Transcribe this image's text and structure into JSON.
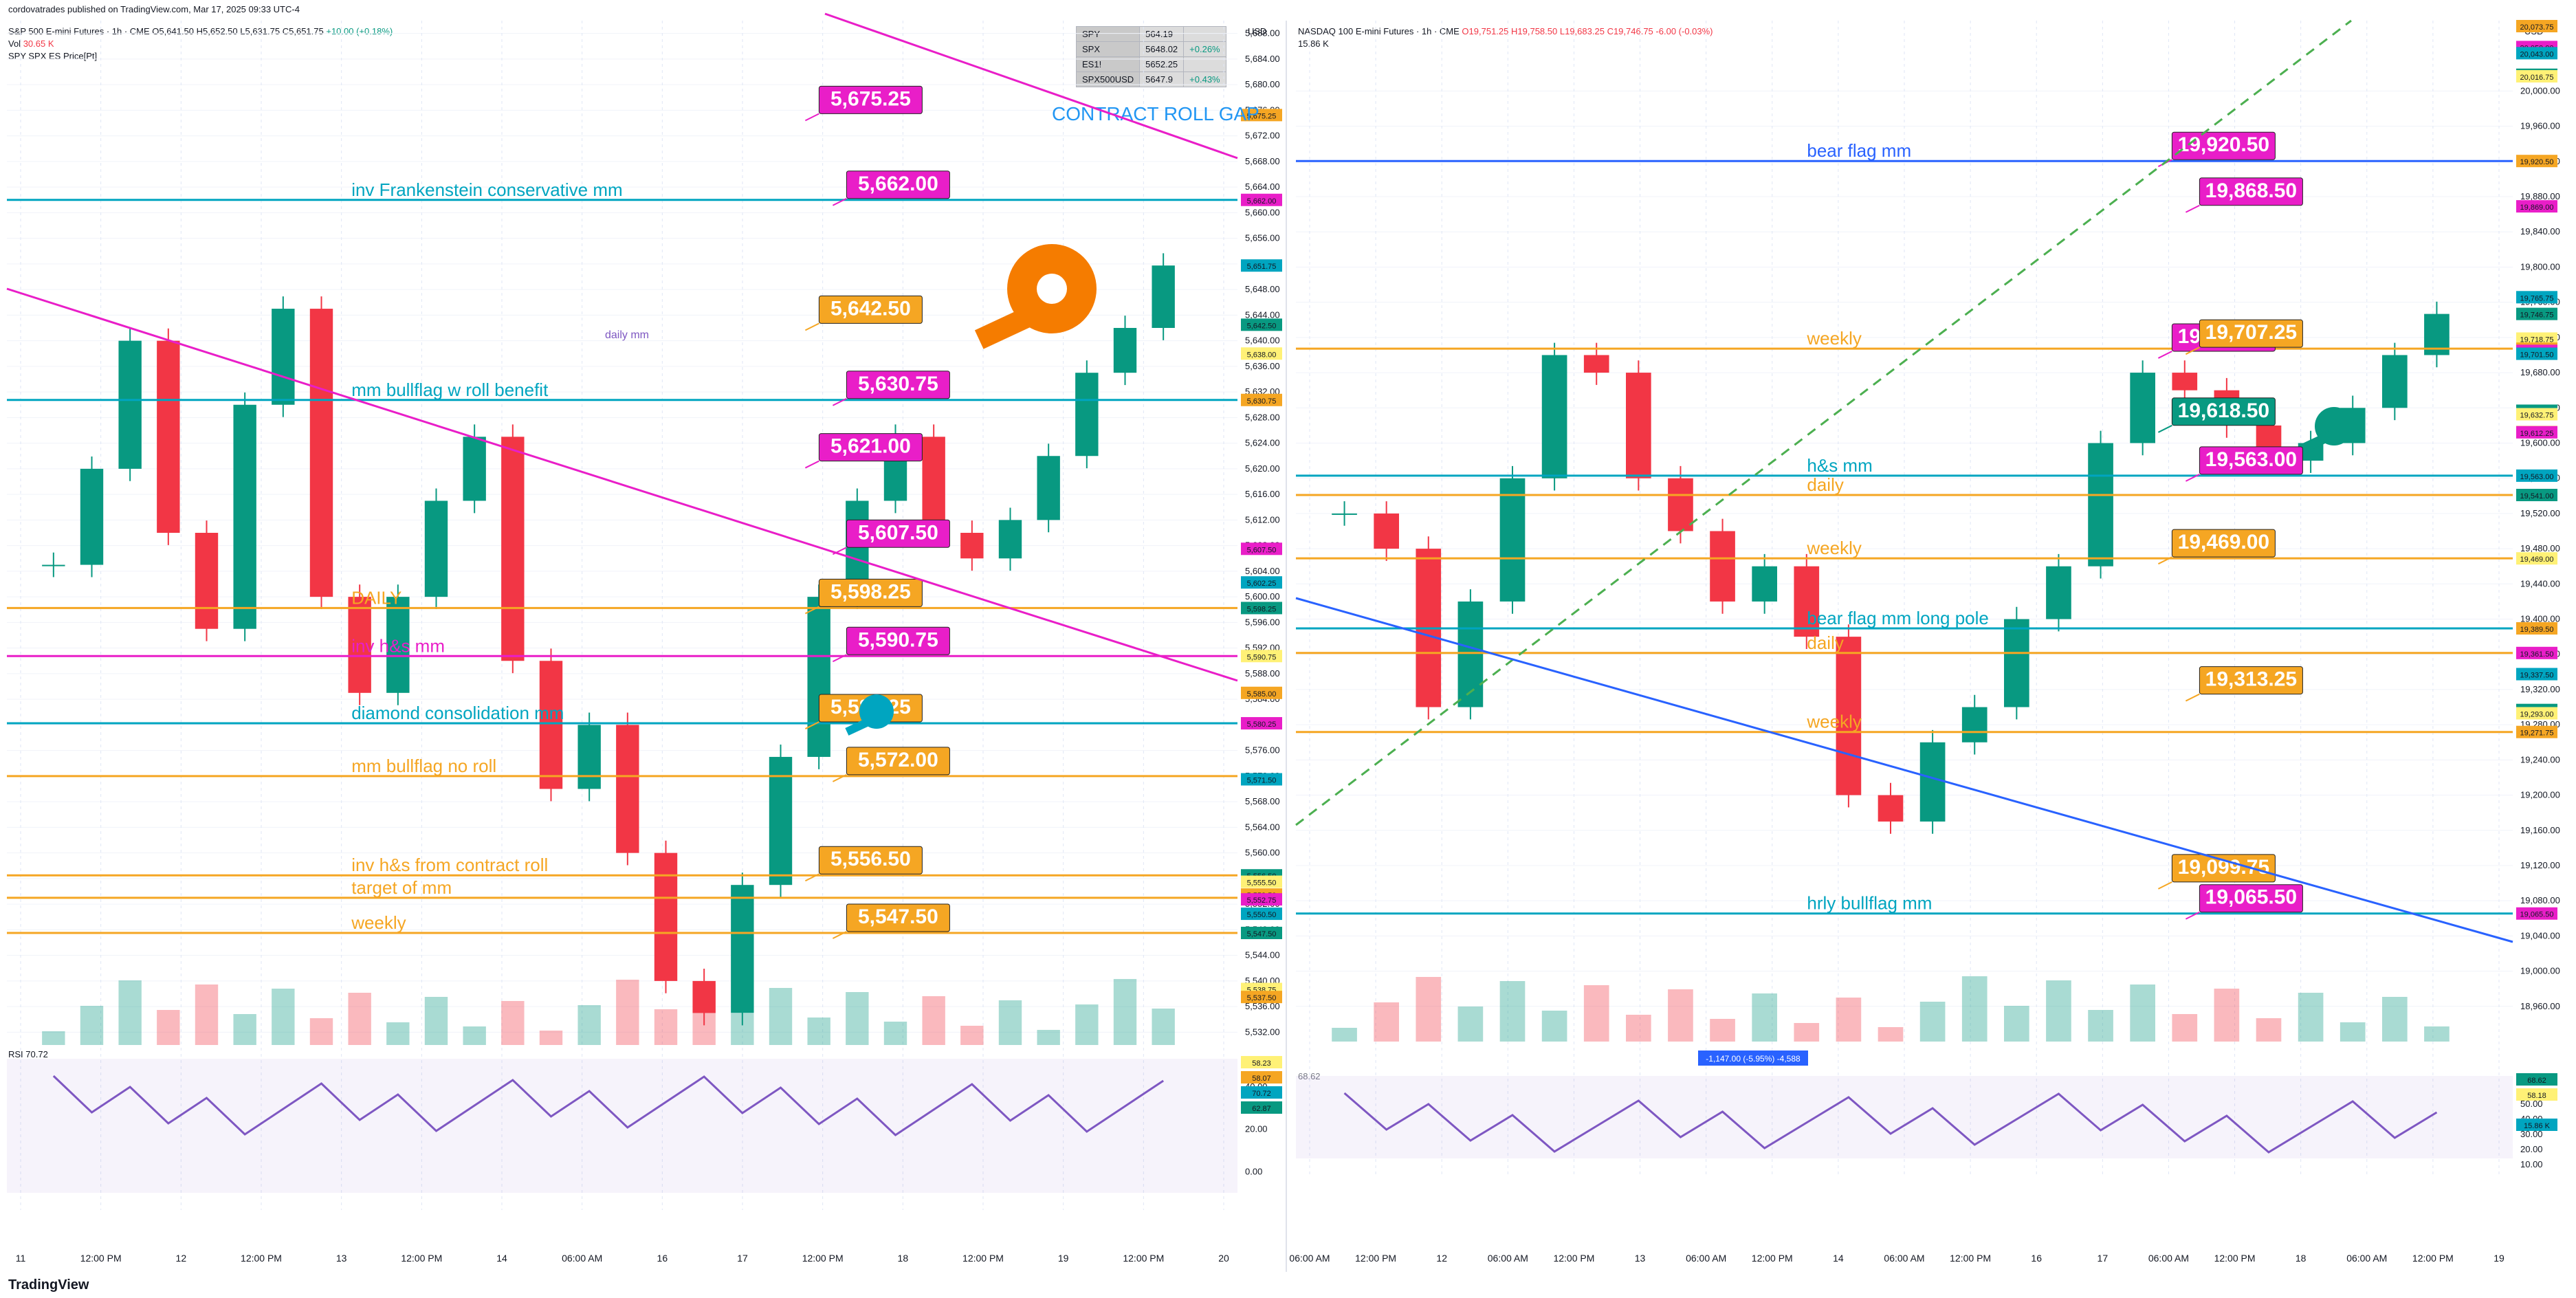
{
  "attribution": "cordovatrades published on TradingView.com, Mar 17, 2025 09:33 UTC-4",
  "footer_logo": "TradingView",
  "left_panel": {
    "title_line": "S&P 500 E-mini Futures · 1h · CME",
    "ohlc": {
      "o": "O5,641.50",
      "h": "H5,652.50",
      "l": "L5,631.75",
      "c": "C5,651.75",
      "chg": "+10.00 (+0.18%)"
    },
    "volume_label": "Vol",
    "volume_value": "30.65 K",
    "indicator_label": "SPY SPX ES Price[Pt]",
    "rsi_label": "RSI",
    "rsi_values": "70.72",
    "quote_table": [
      {
        "sym": "SPY",
        "val": "564.19",
        "chg": ""
      },
      {
        "sym": "SPX",
        "val": "5648.02",
        "chg": "+0.26%"
      },
      {
        "sym": "ES1!",
        "val": "5652.25",
        "chg": ""
      },
      {
        "sym": "SPX500USD",
        "val": "5647.9",
        "chg": "+0.43%"
      }
    ],
    "currency": "USD",
    "contract_roll_gap": "CONTRACT ROLL GAP",
    "daily_mm": "daily mm",
    "y_axis": {
      "min": 5530,
      "max": 5690,
      "ticks": [
        5532,
        5536,
        5540,
        5544,
        5548,
        5552,
        5556,
        5560,
        5564,
        5568,
        5572,
        5576,
        5580,
        5584,
        5588,
        5592,
        5596,
        5600,
        5604,
        5608,
        5612,
        5616,
        5620,
        5624,
        5628,
        5632,
        5636,
        5640,
        5644,
        5648,
        5652,
        5656,
        5660,
        5664,
        5668,
        5672,
        5676,
        5680,
        5684,
        5688
      ]
    },
    "rsi_axis": {
      "ticks": [
        "40.00",
        "20.00",
        "0.00"
      ]
    },
    "x_labels": [
      "11",
      "12:00 PM",
      "12",
      "12:00 PM",
      "13",
      "12:00 PM",
      "14",
      "06:00 AM",
      "16",
      "17",
      "12:00 PM",
      "18",
      "12:00 PM",
      "19",
      "12:00 PM",
      "20"
    ],
    "price_tags": [
      {
        "text": "5,675.25",
        "price": 5675.25,
        "color": "#e91ec8"
      },
      {
        "text": "5,662.00",
        "price": 5662.0,
        "color": "#e91ec8"
      },
      {
        "text": "5,642.50",
        "price": 5642.5,
        "color": "#f5a623"
      },
      {
        "text": "5,630.75",
        "price": 5630.75,
        "color": "#e91ec8"
      },
      {
        "text": "5,621.00",
        "price": 5621.0,
        "color": "#e91ec8"
      },
      {
        "text": "5,607.50",
        "price": 5607.5,
        "color": "#e91ec8"
      },
      {
        "text": "5,598.25",
        "price": 5598.25,
        "color": "#f5a623"
      },
      {
        "text": "5,590.75",
        "price": 5590.75,
        "color": "#e91ec8"
      },
      {
        "text": "5,580.25",
        "price": 5580.25,
        "color": "#f5a623"
      },
      {
        "text": "5,572.00",
        "price": 5572.0,
        "color": "#f5a623"
      },
      {
        "text": "5,556.50",
        "price": 5556.5,
        "color": "#f5a623"
      },
      {
        "text": "5,547.50",
        "price": 5547.5,
        "color": "#f5a623"
      }
    ],
    "level_labels": [
      {
        "text": "inv Frankenstein conservative mm",
        "price": 5662.0,
        "color": "#00a5c0"
      },
      {
        "text": "mm bullflag w roll benefit",
        "price": 5630.75,
        "color": "#00a5c0"
      },
      {
        "text": "DAILY",
        "price": 5598.25,
        "color": "#f5a623"
      },
      {
        "text": "inv h&s mm",
        "price": 5590.75,
        "color": "#e91ec8"
      },
      {
        "text": "diamond consolidation mm",
        "price": 5580.25,
        "color": "#00a5c0"
      },
      {
        "text": "mm bullflag no roll",
        "price": 5572.0,
        "color": "#f5a623"
      },
      {
        "text": "inv h&s from contract roll",
        "price": 5556.5,
        "color": "#f5a623"
      },
      {
        "text": "target of mm",
        "price": 5553.0,
        "color": "#f5a623"
      },
      {
        "text": "weekly",
        "price": 5547.5,
        "color": "#f5a623"
      }
    ],
    "axis_tags": [
      "5,675.25",
      "5,662.00",
      "5,651.75",
      "5,642.50",
      "5,638.00",
      "5,630.75",
      "5,607.50",
      "5,602.25",
      "5,598.25",
      "5,590.75",
      "5,585.00",
      "5,580.25",
      "5,571.50",
      "5,556.50",
      "5,555.50",
      "5,553.50",
      "5,552.75",
      "5,550.50",
      "5,547.50",
      "5,538.75",
      "5,537.50",
      "30.65 K",
      "70.72",
      "62.87",
      "58.23",
      "58.07"
    ]
  },
  "right_panel": {
    "title_line": "NASDAQ 100 E-mini Futures · 1h · CME",
    "ohlc": {
      "o": "O19,751.25",
      "h": "H19,758.50",
      "l": "L19,683.25",
      "c": "C19,746.75",
      "chg": "-6.00 (-0.03%)"
    },
    "volume_value": "15.86 K",
    "rsi_values": "68.62",
    "currency": "USD",
    "measure_label": "-1,147.00 (-5.95%) -4,588",
    "y_axis": {
      "min": 18920,
      "max": 20080,
      "ticks": [
        18960,
        19000,
        19040,
        19080,
        19120,
        19160,
        19200,
        19240,
        19280,
        19320,
        19360,
        19400,
        19440,
        19480,
        19520,
        19560,
        19600,
        19640,
        19680,
        19720,
        19760,
        19800,
        19840,
        19880,
        19920,
        19960,
        20000
      ]
    },
    "rsi_axis": {
      "ticks": [
        "50.00",
        "40.00",
        "30.00",
        "20.00",
        "10.00"
      ]
    },
    "x_labels": [
      "06:00 AM",
      "12:00 PM",
      "12",
      "06:00 AM",
      "12:00 PM",
      "13",
      "06:00 AM",
      "12:00 PM",
      "14",
      "06:00 AM",
      "12:00 PM",
      "16",
      "17",
      "06:00 AM",
      "12:00 PM",
      "18",
      "06:00 AM",
      "12:00 PM",
      "19"
    ],
    "price_tags": [
      {
        "text": "19,920.50",
        "price": 19920.5,
        "color": "#e91ec8"
      },
      {
        "text": "19,868.50",
        "price": 19868.5,
        "color": "#e91ec8"
      },
      {
        "text": "19,702.75",
        "price": 19702.75,
        "color": "#e91ec8"
      },
      {
        "text": "19,707.25",
        "price": 19707.25,
        "color": "#f5a623"
      },
      {
        "text": "19,618.50",
        "price": 19618.5,
        "color": "#089981"
      },
      {
        "text": "19,563.00",
        "price": 19563.0,
        "color": "#e91ec8"
      },
      {
        "text": "19,469.00",
        "price": 19469.0,
        "color": "#f5a623"
      },
      {
        "text": "19,313.25",
        "price": 19313.25,
        "color": "#f5a623"
      },
      {
        "text": "19,099.75",
        "price": 19099.75,
        "color": "#f5a623"
      },
      {
        "text": "19,065.50",
        "price": 19065.5,
        "color": "#e91ec8"
      }
    ],
    "level_labels": [
      {
        "text": "bear flag mm",
        "price": 19920.5,
        "color": "#2962ff"
      },
      {
        "text": "weekly",
        "price": 19707.25,
        "color": "#f5a623"
      },
      {
        "text": "h&s mm",
        "price": 19563.0,
        "color": "#00a5c0"
      },
      {
        "text": "daily",
        "price": 19541.0,
        "color": "#f5a623"
      },
      {
        "text": "weekly",
        "price": 19469.0,
        "color": "#f5a623"
      },
      {
        "text": "bear flag mm long pole",
        "price": 19389.5,
        "color": "#00a5c0"
      },
      {
        "text": "daily",
        "price": 19361.5,
        "color": "#f5a623"
      },
      {
        "text": "weekly",
        "price": 19271.75,
        "color": "#f5a623"
      },
      {
        "text": "hrly bullflag mm",
        "price": 19065.5,
        "color": "#00a5c0"
      }
    ],
    "axis_tags": [
      "20,073.75",
      "20,050.00",
      "20,043.00",
      "20,018.50",
      "20,016.75",
      "19,920.50",
      "19,869.00",
      "19,765.75",
      "19,746.75",
      "19,718.75",
      "19,707.25",
      "19,704.75",
      "19,701.50",
      "19,636.75",
      "19,632.75",
      "19,612.50",
      "19,612.25",
      "19,563.00",
      "19,541.00",
      "19,469.00",
      "19,389.50",
      "19,361.50",
      "19,337.50",
      "19,296.75",
      "19,293.00",
      "19,271.75",
      "19,065.50",
      "15.86 K",
      "68.62",
      "58.18"
    ]
  },
  "chart_data": [
    {
      "type": "candlestick",
      "title": "S&P 500 E-mini Futures · 1h · CME",
      "ylabel": "USD",
      "ylim": [
        5530,
        5690
      ],
      "grid": true,
      "series": [
        {
          "name": "S&P 500 E-mini Futures",
          "values": [
            5605,
            5620,
            5640,
            5610,
            5595,
            5630,
            5645,
            5600,
            5585,
            5600,
            5615,
            5625,
            5590,
            5570,
            5580,
            5560,
            5540,
            5535,
            5555,
            5575,
            5600,
            5615,
            5625,
            5610,
            5606,
            5612,
            5622,
            5635,
            5642,
            5651.75
          ]
        }
      ]
    },
    {
      "type": "candlestick",
      "title": "NASDAQ 100 E-mini Futures · 1h · CME",
      "ylabel": "USD",
      "ylim": [
        18920,
        20080
      ],
      "grid": true,
      "series": [
        {
          "name": "NASDAQ 100 E-mini Futures",
          "values": [
            19520,
            19480,
            19300,
            19420,
            19560,
            19700,
            19680,
            19560,
            19500,
            19420,
            19460,
            19380,
            19200,
            19170,
            19260,
            19300,
            19400,
            19460,
            19600,
            19680,
            19660,
            19620,
            19580,
            19600,
            19640,
            19700,
            19746.75
          ]
        }
      ]
    }
  ]
}
